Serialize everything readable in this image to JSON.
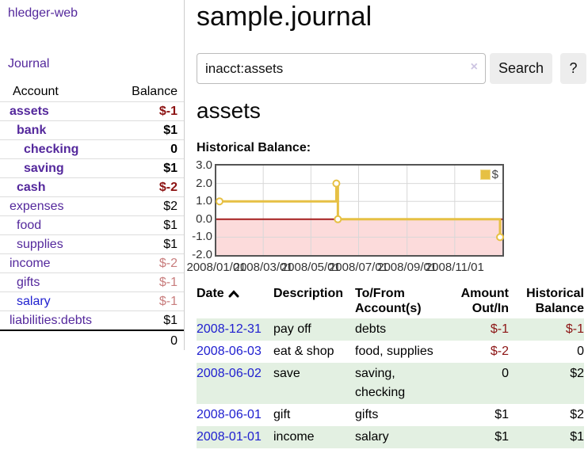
{
  "app": {
    "title": "hledger-web"
  },
  "colors": {
    "link_purple": "#54289c",
    "link_blue": "#2020d0",
    "negative_strong": "#8c1212",
    "negative_light": "#c87d7d",
    "negative_table": "#8c1414",
    "row_stripe_green": "#e3f0e2",
    "chart_gold": "#e6c044",
    "chart_negative_region": "#fcdbdb",
    "chart_zero_line": "#a51e1e"
  },
  "sidebar": {
    "nav_journal_label": "Journal",
    "accounts_table": {
      "headers": {
        "account": "Account",
        "balance": "Balance"
      },
      "rows": [
        {
          "name": "assets",
          "level": 0,
          "bold": true,
          "balance": "$-1",
          "balance_class": "neg-strong"
        },
        {
          "name": "bank",
          "level": 1,
          "bold": true,
          "balance": "$1",
          "balance_class": "pos"
        },
        {
          "name": "checking",
          "level": 2,
          "bold": true,
          "balance": "0",
          "balance_class": "pos"
        },
        {
          "name": "saving",
          "level": 2,
          "bold": true,
          "balance": "$1",
          "balance_class": "pos"
        },
        {
          "name": "cash",
          "level": 1,
          "bold": true,
          "balance": "$-2",
          "balance_class": "neg-strong"
        },
        {
          "name": "expenses",
          "level": 0,
          "bold": false,
          "balance": "$2",
          "balance_class": "pos"
        },
        {
          "name": "food",
          "level": 1,
          "bold": false,
          "balance": "$1",
          "balance_class": "pos"
        },
        {
          "name": "supplies",
          "level": 1,
          "bold": false,
          "balance": "$1",
          "balance_class": "pos"
        },
        {
          "name": "income",
          "level": 0,
          "bold": false,
          "balance": "$-2",
          "balance_class": "neg-light"
        },
        {
          "name": "gifts",
          "level": 1,
          "bold": false,
          "balance": "$-1",
          "balance_class": "neg-light"
        },
        {
          "name": "salary",
          "level": 1,
          "bold": false,
          "blue": true,
          "balance": "$-1",
          "balance_class": "neg-light"
        },
        {
          "name": "liabilities:debts",
          "level": 0,
          "bold": false,
          "balance": "$1",
          "balance_class": "pos"
        }
      ],
      "total": "0"
    }
  },
  "main": {
    "title": "sample.journal",
    "search": {
      "value": "inacct:assets",
      "clear_icon": "×",
      "button": "Search",
      "help_button": "?"
    },
    "account_heading": "assets",
    "chart_label": "Historical Balance:"
  },
  "chart_data": {
    "type": "line",
    "subtype": "step-line with markers",
    "title": "Historical Balance:",
    "x_range": [
      "2008/01/01",
      "2009/01/01"
    ],
    "x_ticks": [
      "2008/01/01",
      "2008/03/01",
      "2008/05/01",
      "2008/07/01",
      "2008/09/01",
      "2008/11/01"
    ],
    "y_ticks": [
      "3.0",
      "2.0",
      "1.0",
      "0.0",
      "-1.0",
      "-2.0"
    ],
    "ylim": [
      -2,
      3
    ],
    "grid": true,
    "legend_position": "top-right",
    "legend": [
      {
        "label": "$",
        "color": "#e6c044"
      }
    ],
    "series": [
      {
        "name": "$",
        "color": "#e6c044",
        "points": [
          {
            "date": "2008/01/01",
            "value": 1.0
          },
          {
            "date": "2008/06/01",
            "value": 2.0
          },
          {
            "date": "2008/06/03",
            "value": 0.0
          },
          {
            "date": "2008/12/31",
            "value": -1.0
          }
        ]
      }
    ],
    "negative_region_color": "#fcdbdb",
    "zero_line_color": "#a51e1e"
  },
  "register": {
    "headers": [
      {
        "label": "Date",
        "sorted_asc": true
      },
      {
        "label": "Description"
      },
      {
        "label": "To/From Account(s)"
      },
      {
        "label": "Amount Out/In"
      },
      {
        "label": "Historical Balance"
      }
    ],
    "rows": [
      {
        "date": "2008-12-31",
        "description": "pay off",
        "accounts": "debts",
        "amount": "$-1",
        "amount_negative": true,
        "balance": "$-1",
        "balance_negative": true
      },
      {
        "date": "2008-06-03",
        "description": "eat & shop",
        "accounts": "food, supplies",
        "amount": "$-2",
        "amount_negative": true,
        "balance": "0",
        "balance_negative": false
      },
      {
        "date": "2008-06-02",
        "description": "save",
        "accounts": "saving, checking",
        "amount": "0",
        "amount_negative": false,
        "balance": "$2",
        "balance_negative": false
      },
      {
        "date": "2008-06-01",
        "description": "gift",
        "accounts": "gifts",
        "amount": "$1",
        "amount_negative": false,
        "balance": "$2",
        "balance_negative": false
      },
      {
        "date": "2008-01-01",
        "description": "income",
        "accounts": "salary",
        "amount": "$1",
        "amount_negative": false,
        "balance": "$1",
        "balance_negative": false
      }
    ]
  }
}
